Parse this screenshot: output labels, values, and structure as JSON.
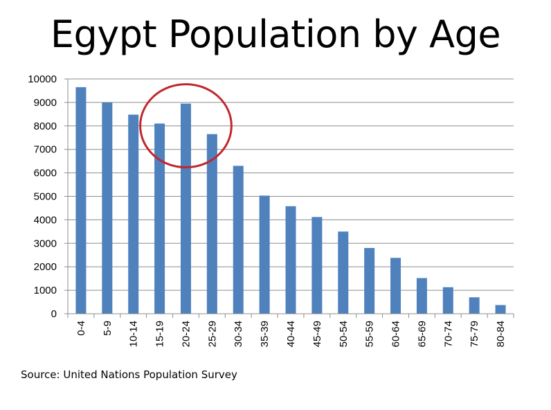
{
  "title": "Egypt Population by Age",
  "source": "Source: United Nations Population Survey",
  "chart_data": {
    "type": "bar",
    "categories": [
      "0-4",
      "5-9",
      "10-14",
      "15-19",
      "20-24",
      "25-29",
      "30-34",
      "35-39",
      "40-44",
      "45-49",
      "50-54",
      "55-59",
      "60-64",
      "65-69",
      "70-74",
      "75-79",
      "80-84"
    ],
    "values": [
      9650,
      9000,
      8480,
      8100,
      8950,
      7650,
      6300,
      5030,
      4580,
      4120,
      3500,
      2800,
      2380,
      1520,
      1130,
      700,
      370
    ],
    "yticks": [
      0,
      1000,
      2000,
      3000,
      4000,
      5000,
      6000,
      7000,
      8000,
      9000,
      10000
    ],
    "ylim": [
      0,
      10000
    ],
    "grid": true,
    "bar_color": "#4F81BD",
    "annotation": {
      "type": "ellipse",
      "around": [
        "15-19",
        "20-24",
        "25-29"
      ],
      "color": "#C0272D"
    }
  }
}
